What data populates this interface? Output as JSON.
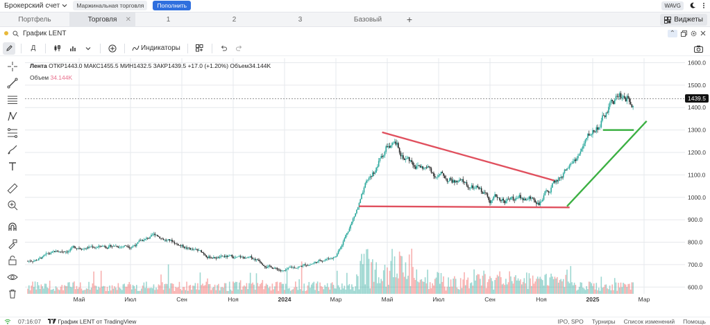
{
  "topbar": {
    "account_label": "Брокерский счет",
    "margin_label": "Маржинальная торговля",
    "deposit_label": "Пополнить",
    "ticker_badge": "WAVG"
  },
  "tabs": [
    {
      "label": "Портфель"
    },
    {
      "label": "Торговля"
    },
    {
      "label": "1"
    },
    {
      "label": "2"
    },
    {
      "label": "3"
    },
    {
      "label": "Базовый"
    }
  ],
  "widgets_label": "Виджеты",
  "chart_header": {
    "title": "График LENT"
  },
  "toolbar": {
    "indicators_label": "Индикаторы"
  },
  "legend": {
    "name": "Лента",
    "ohlc": "ОТКР1443.0  МАКС1455.5  МИН1432.5  ЗАКР1439.5  +17.0 (+1.20%)  Объем34.144K",
    "volume_label": "Объем",
    "volume_value": "34.144K"
  },
  "colors": {
    "up": "#26a69a",
    "down": "#222222",
    "trend_red": "#e0505e",
    "trend_green": "#3cb043",
    "grid": "#e6e8ec"
  },
  "chart_data": {
    "type": "candlestick",
    "symbol": "LENT",
    "price_axis_ticks": [
      "1600.0",
      "1500.0",
      "1400.0",
      "1300.0",
      "1200.0",
      "1100.0",
      "1000.0",
      "900.0",
      "800.0",
      "700.0",
      "600.0"
    ],
    "time_axis_ticks": [
      "Май",
      "Июл",
      "Сен",
      "Ноя",
      "2024",
      "Мар",
      "Май",
      "Июл",
      "Сен",
      "Ноя",
      "2025",
      "Мар"
    ],
    "last_price": "1439.5",
    "ylim": [
      570,
      1620
    ],
    "approx_close_path": [
      {
        "month": "2023-03",
        "close": 715
      },
      {
        "month": "2023-05",
        "close": 780
      },
      {
        "month": "2023-07",
        "close": 790
      },
      {
        "month": "2023-08",
        "close": 830
      },
      {
        "month": "2023-10",
        "close": 740
      },
      {
        "month": "2023-12",
        "close": 720
      },
      {
        "month": "2024-01",
        "close": 670
      },
      {
        "month": "2024-03",
        "close": 740
      },
      {
        "month": "2024-04",
        "close": 990
      },
      {
        "month": "2024-05",
        "close": 1230
      },
      {
        "month": "2024-07",
        "close": 1100
      },
      {
        "month": "2024-09",
        "close": 1000
      },
      {
        "month": "2024-11",
        "close": 990
      },
      {
        "month": "2024-12",
        "close": 1120
      },
      {
        "month": "2025-02",
        "close": 1450
      }
    ]
  },
  "bottombar": {
    "time": "07:16:07",
    "tv_label": "График LENT от TradingView",
    "ipo_label": "IPO, SPO",
    "tournaments_label": "Турниры",
    "changes_label": "Список изменений",
    "help_label": "Помощь"
  }
}
